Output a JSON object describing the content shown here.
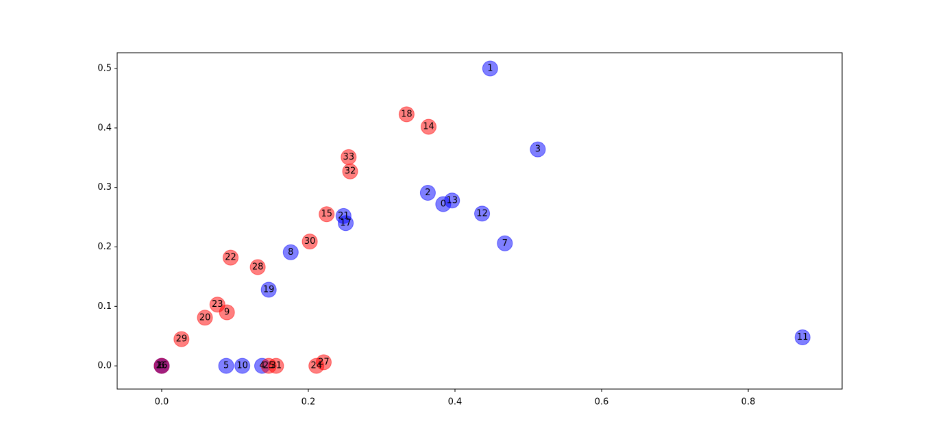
{
  "chart_data": {
    "type": "scatter",
    "alpha": 0.5,
    "xlim": [
      -0.0607,
      0.928
    ],
    "ylim": [
      -0.039,
      0.5265
    ],
    "xticks": [
      {
        "value": 0,
        "label": "0.0"
      },
      0.2,
      0.4,
      0.6,
      0.8
    ],
    "yticks": [
      {
        "value": 0,
        "label": "0.0"
      },
      0.1,
      0.2,
      0.3,
      0.4,
      0.5
    ],
    "series": [
      {
        "color": "#0000ff",
        "labels": [
          "0",
          "1",
          "2",
          "3",
          "4",
          "5",
          "6",
          "7",
          "8",
          "10",
          "11",
          "12",
          "13",
          "16",
          "17",
          "19",
          "21"
        ],
        "x": [
          0.384,
          0.448,
          0.363,
          0.513,
          0.137,
          0.088,
          0,
          0.468,
          0.176,
          0.11,
          0.874,
          0.437,
          0.396,
          0,
          0.251,
          0.146,
          0.248
        ],
        "y": [
          0.272,
          0.5,
          0.291,
          0.364,
          0,
          0,
          0,
          0.206,
          0.191,
          0,
          0.048,
          0.256,
          0.278,
          0,
          0.24,
          0.128,
          0.252
        ]
      },
      {
        "color": "#ff0000",
        "labels": [
          "9",
          "14",
          "15",
          "18",
          "20",
          "22",
          "23",
          "24",
          "25",
          "26",
          "27",
          "28",
          "29",
          "30",
          "31",
          "32",
          "33"
        ],
        "x": [
          0.089,
          0.364,
          0.225,
          0.334,
          0.059,
          0.094,
          0.076,
          0.211,
          0.146,
          0,
          0.221,
          0.131,
          0.027,
          0.202,
          0.156,
          0.257,
          0.255
        ],
        "y": [
          0.09,
          0.402,
          0.255,
          0.423,
          0.081,
          0.182,
          0.103,
          0,
          0,
          0,
          0.006,
          0.166,
          0.045,
          0.209,
          0,
          0.327,
          0.351
        ]
      }
    ]
  }
}
